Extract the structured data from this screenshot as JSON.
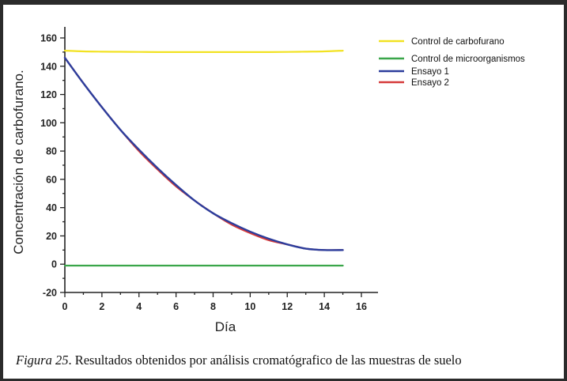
{
  "caption": {
    "figure_label": "Figura  25",
    "text": ". Resultados obtenidos por análisis cromatógrafico de las muestras de suelo"
  },
  "chart_data": {
    "type": "line",
    "title": "",
    "xlabel": "Día",
    "ylabel": "Concentración de carbofurano.",
    "xlim": [
      0,
      16
    ],
    "ylim": [
      -20,
      165
    ],
    "xticks": [
      0,
      2,
      4,
      6,
      8,
      10,
      12,
      14,
      16
    ],
    "yticks": [
      -20,
      0,
      20,
      40,
      60,
      80,
      100,
      120,
      140,
      160
    ],
    "grid": false,
    "legend_position": "top-right",
    "series": [
      {
        "name": "Control de carbofurano",
        "color": "#f2e222",
        "x": [
          0,
          1,
          2,
          3,
          4,
          5,
          6,
          7,
          8,
          9,
          10,
          11,
          12,
          13,
          14,
          15
        ],
        "y": [
          151,
          150.5,
          150.3,
          150.2,
          150.1,
          150,
          150,
          150,
          150,
          150,
          150,
          150,
          150.1,
          150.3,
          150.5,
          151
        ]
      },
      {
        "name": "Control de microorganismos",
        "color": "#3aa64a",
        "x": [
          0,
          15
        ],
        "y": [
          -1,
          -1
        ]
      },
      {
        "name": "Ensayo 1",
        "color": "#2c3d9c",
        "x": [
          0,
          1,
          2,
          3,
          4,
          5,
          6,
          7,
          8,
          9,
          10,
          11,
          12,
          13,
          14,
          15
        ],
        "y": [
          146,
          128,
          111,
          95,
          81,
          68,
          56,
          45,
          36,
          29,
          23,
          18,
          14,
          11,
          10,
          10
        ]
      },
      {
        "name": "Ensayo 2",
        "color": "#d63a3a",
        "x": [
          0,
          1,
          2,
          3,
          4,
          5,
          6,
          7,
          8,
          9,
          10,
          11,
          12,
          13,
          14,
          15
        ],
        "y": [
          146,
          128,
          111,
          95,
          80,
          67,
          55,
          45,
          36,
          28,
          22,
          17,
          14,
          11,
          10,
          10
        ]
      }
    ]
  }
}
